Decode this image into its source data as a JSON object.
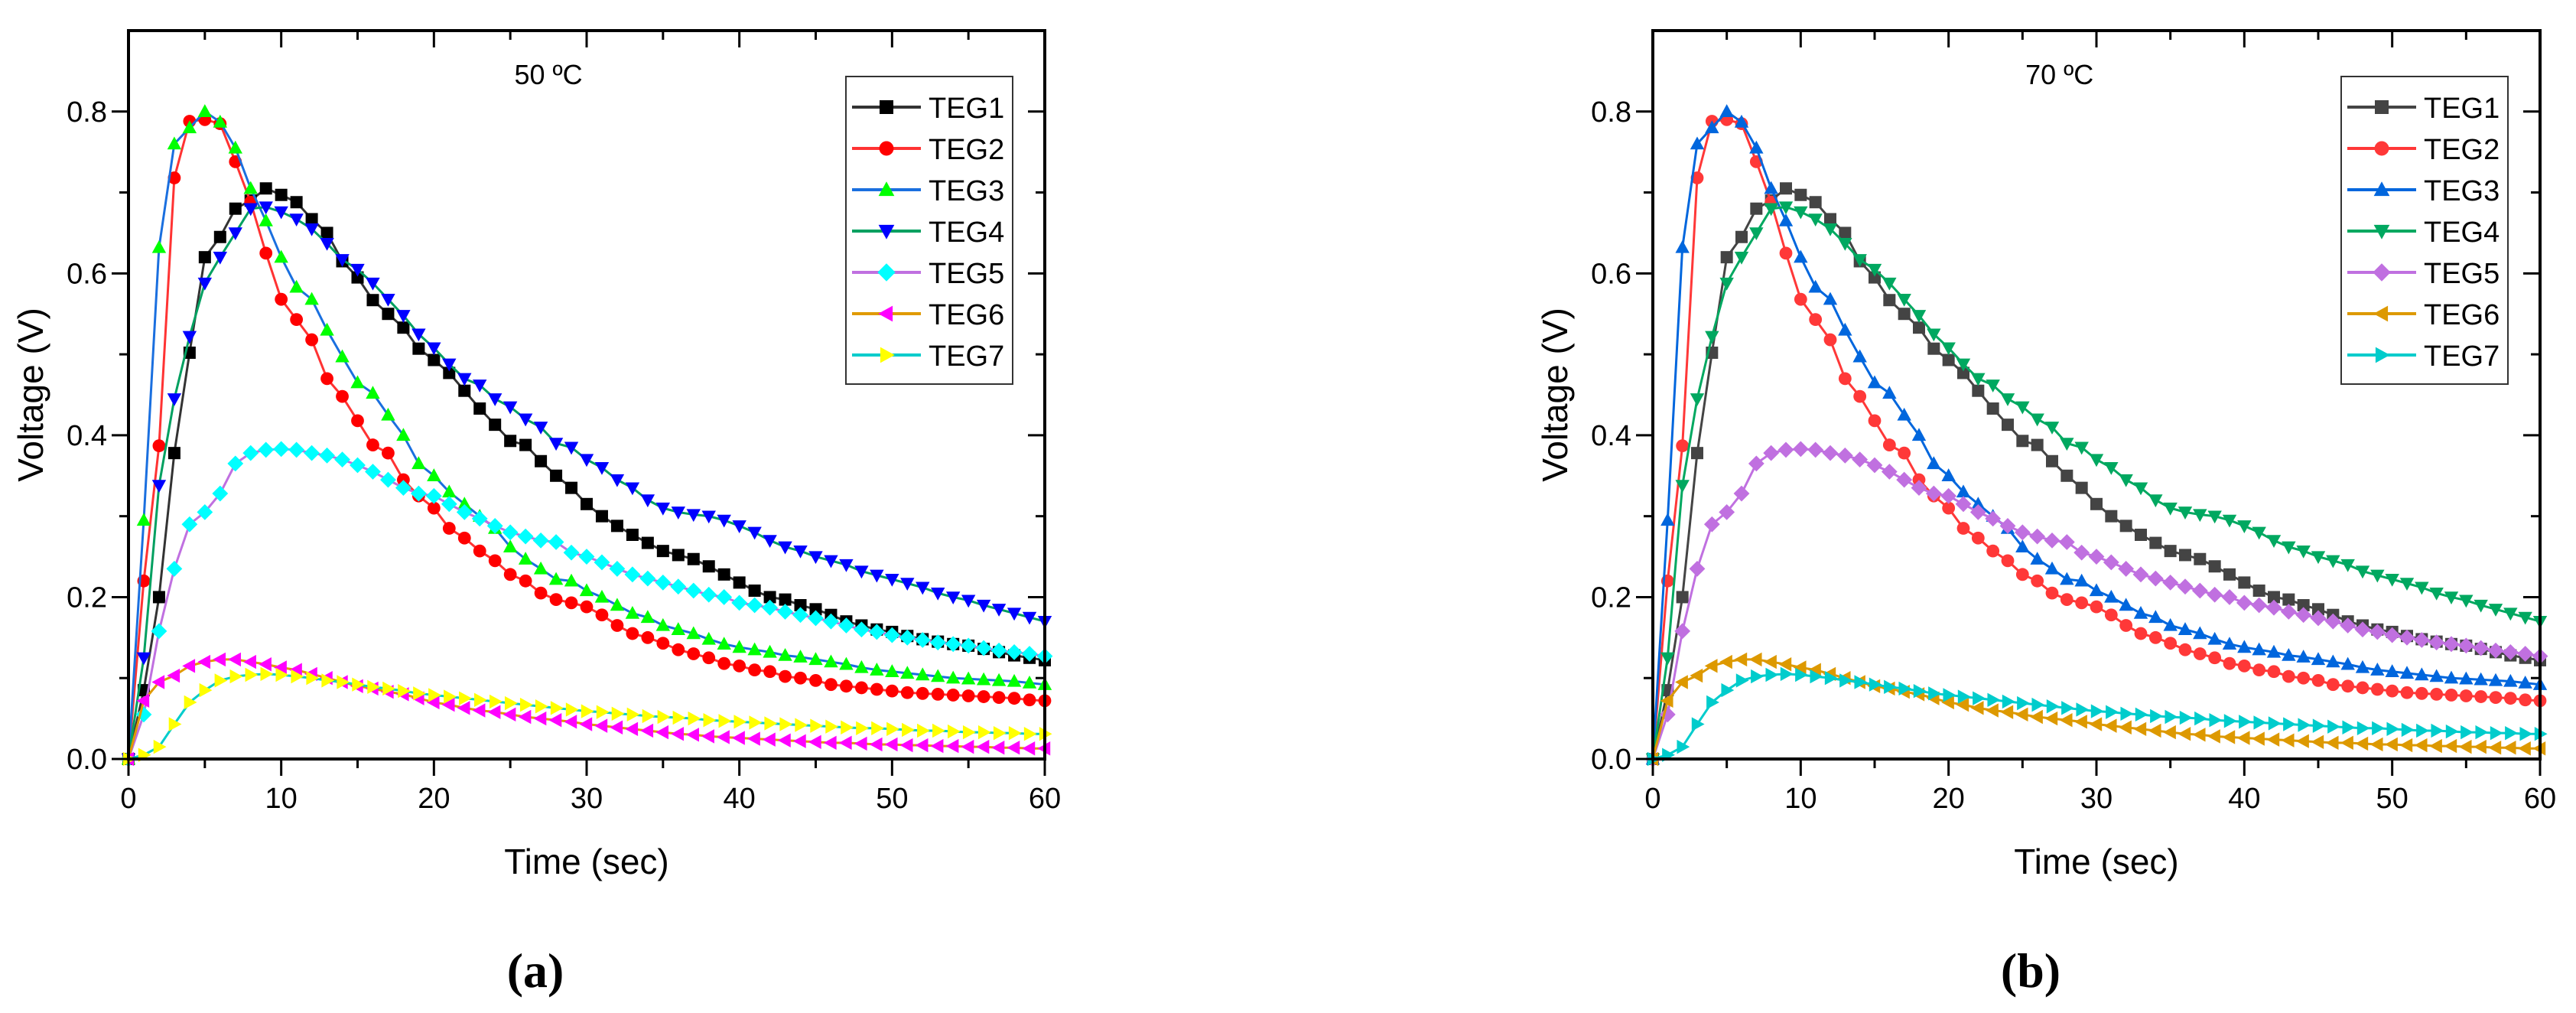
{
  "chart_data": [
    {
      "type": "line",
      "panel_label": "(a)",
      "annotation": "50 ºC",
      "xlabel": "Time (sec)",
      "ylabel": "Voltage (V)",
      "xlim": [
        0,
        60
      ],
      "ylim": [
        0,
        0.9
      ],
      "xticks": [
        0,
        10,
        20,
        30,
        40,
        50,
        60
      ],
      "yticks": [
        0.0,
        0.2,
        0.4,
        0.6,
        0.8
      ],
      "ytick_labels": [
        "0.0",
        "0.2",
        "0.4",
        "0.6",
        "0.8"
      ],
      "grid": false,
      "legend_position": "top-right",
      "series": [
        {
          "name": "TEG1",
          "line_color": "#333333",
          "marker_color": "#000000",
          "marker": "square"
        },
        {
          "name": "TEG2",
          "line_color": "#ff3333",
          "marker_color": "#ff0000",
          "marker": "circle"
        },
        {
          "name": "TEG3",
          "line_color": "#1a6fdf",
          "marker_color": "#00ff00",
          "marker": "triangle-up"
        },
        {
          "name": "TEG4",
          "line_color": "#00a060",
          "marker_color": "#0000ff",
          "marker": "triangle-down"
        },
        {
          "name": "TEG5",
          "line_color": "#c070e0",
          "marker_color": "#00ffff",
          "marker": "diamond"
        },
        {
          "name": "TEG6",
          "line_color": "#e09a00",
          "marker_color": "#ff00ff",
          "marker": "triangle-left"
        },
        {
          "name": "TEG7",
          "line_color": "#00cccc",
          "marker_color": "#ffff00",
          "marker": "triangle-right"
        }
      ]
    },
    {
      "type": "line",
      "panel_label": "(b)",
      "annotation": "70 ºC",
      "xlabel": "Time (sec)",
      "ylabel": "Voltage (V)",
      "xlim": [
        0,
        60
      ],
      "ylim": [
        0,
        0.9
      ],
      "xticks": [
        0,
        10,
        20,
        30,
        40,
        50,
        60
      ],
      "yticks": [
        0.0,
        0.2,
        0.4,
        0.6,
        0.8
      ],
      "ytick_labels": [
        "0.0",
        "0.2",
        "0.4",
        "0.6",
        "0.8"
      ],
      "grid": false,
      "legend_position": "top-right",
      "series": [
        {
          "name": "TEG1",
          "line_color": "#444444",
          "marker_color": "#444444",
          "marker": "square"
        },
        {
          "name": "TEG2",
          "line_color": "#ff3838",
          "marker_color": "#ff3838",
          "marker": "circle"
        },
        {
          "name": "TEG3",
          "line_color": "#0066dd",
          "marker_color": "#0066dd",
          "marker": "triangle-up"
        },
        {
          "name": "TEG4",
          "line_color": "#00a860",
          "marker_color": "#00a860",
          "marker": "triangle-down"
        },
        {
          "name": "TEG5",
          "line_color": "#c070e0",
          "marker_color": "#c070e0",
          "marker": "diamond"
        },
        {
          "name": "TEG6",
          "line_color": "#dd9900",
          "marker_color": "#dd9900",
          "marker": "triangle-left"
        },
        {
          "name": "TEG7",
          "line_color": "#00cccc",
          "marker_color": "#00cccc",
          "marker": "triangle-right"
        }
      ]
    }
  ],
  "x_values": "0 to 60 step 1 (shared by all series)",
  "values": {
    "TEG1": [
      0,
      0.085,
      0.2,
      0.378,
      0.502,
      0.62,
      0.645,
      0.68,
      0.69,
      0.705,
      0.697,
      0.688,
      0.667,
      0.65,
      0.615,
      0.595,
      0.567,
      0.55,
      0.533,
      0.507,
      0.493,
      0.477,
      0.455,
      0.433,
      0.413,
      0.393,
      0.388,
      0.368,
      0.35,
      0.335,
      0.315,
      0.3,
      0.288,
      0.277,
      0.267,
      0.257,
      0.252,
      0.247,
      0.238,
      0.228,
      0.218,
      0.208,
      0.2,
      0.197,
      0.19,
      0.185,
      0.178,
      0.17,
      0.165,
      0.16,
      0.157,
      0.152,
      0.148,
      0.145,
      0.142,
      0.14,
      0.136,
      0.132,
      0.128,
      0.125,
      0.122
    ],
    "TEG2": [
      0,
      0.22,
      0.387,
      0.718,
      0.788,
      0.79,
      0.785,
      0.738,
      0.688,
      0.625,
      0.568,
      0.543,
      0.518,
      0.47,
      0.448,
      0.418,
      0.388,
      0.378,
      0.345,
      0.325,
      0.31,
      0.285,
      0.273,
      0.257,
      0.245,
      0.228,
      0.22,
      0.205,
      0.197,
      0.193,
      0.188,
      0.178,
      0.165,
      0.155,
      0.15,
      0.143,
      0.135,
      0.13,
      0.125,
      0.118,
      0.115,
      0.11,
      0.108,
      0.102,
      0.1,
      0.097,
      0.092,
      0.09,
      0.088,
      0.086,
      0.084,
      0.082,
      0.081,
      0.08,
      0.079,
      0.078,
      0.077,
      0.076,
      0.075,
      0.073,
      0.072
    ],
    "TEG3": [
      0,
      0.295,
      0.632,
      0.76,
      0.78,
      0.8,
      0.787,
      0.755,
      0.705,
      0.665,
      0.62,
      0.583,
      0.568,
      0.53,
      0.497,
      0.465,
      0.452,
      0.425,
      0.4,
      0.365,
      0.35,
      0.33,
      0.315,
      0.3,
      0.285,
      0.262,
      0.247,
      0.235,
      0.222,
      0.22,
      0.208,
      0.2,
      0.19,
      0.18,
      0.175,
      0.165,
      0.16,
      0.155,
      0.148,
      0.142,
      0.138,
      0.135,
      0.132,
      0.128,
      0.126,
      0.123,
      0.12,
      0.117,
      0.113,
      0.11,
      0.108,
      0.106,
      0.104,
      0.102,
      0.1,
      0.099,
      0.098,
      0.097,
      0.096,
      0.094,
      0.092
    ],
    "TEG4": [
      0,
      0.125,
      0.338,
      0.445,
      0.522,
      0.588,
      0.62,
      0.65,
      0.68,
      0.682,
      0.676,
      0.667,
      0.655,
      0.637,
      0.617,
      0.605,
      0.588,
      0.568,
      0.548,
      0.525,
      0.508,
      0.488,
      0.47,
      0.462,
      0.445,
      0.435,
      0.42,
      0.41,
      0.39,
      0.385,
      0.37,
      0.36,
      0.345,
      0.335,
      0.32,
      0.31,
      0.305,
      0.302,
      0.3,
      0.295,
      0.288,
      0.28,
      0.27,
      0.262,
      0.257,
      0.25,
      0.245,
      0.24,
      0.232,
      0.227,
      0.222,
      0.217,
      0.212,
      0.205,
      0.2,
      0.196,
      0.19,
      0.185,
      0.18,
      0.175,
      0.17
    ],
    "TEG5": [
      0,
      0.055,
      0.158,
      0.235,
      0.29,
      0.305,
      0.328,
      0.365,
      0.378,
      0.382,
      0.383,
      0.382,
      0.378,
      0.375,
      0.37,
      0.363,
      0.355,
      0.345,
      0.335,
      0.328,
      0.325,
      0.315,
      0.305,
      0.297,
      0.288,
      0.28,
      0.275,
      0.27,
      0.268,
      0.255,
      0.25,
      0.243,
      0.235,
      0.228,
      0.223,
      0.218,
      0.213,
      0.208,
      0.203,
      0.2,
      0.193,
      0.19,
      0.187,
      0.182,
      0.178,
      0.174,
      0.17,
      0.165,
      0.16,
      0.157,
      0.153,
      0.15,
      0.147,
      0.144,
      0.142,
      0.14,
      0.137,
      0.134,
      0.132,
      0.13,
      0.127
    ],
    "TEG6": [
      0,
      0.072,
      0.095,
      0.103,
      0.115,
      0.12,
      0.123,
      0.123,
      0.12,
      0.117,
      0.113,
      0.11,
      0.105,
      0.1,
      0.095,
      0.09,
      0.087,
      0.083,
      0.08,
      0.075,
      0.07,
      0.067,
      0.063,
      0.06,
      0.058,
      0.055,
      0.052,
      0.05,
      0.048,
      0.046,
      0.043,
      0.041,
      0.039,
      0.037,
      0.035,
      0.033,
      0.031,
      0.03,
      0.028,
      0.027,
      0.026,
      0.025,
      0.024,
      0.023,
      0.022,
      0.021,
      0.02,
      0.02,
      0.019,
      0.018,
      0.018,
      0.017,
      0.017,
      0.016,
      0.016,
      0.015,
      0.015,
      0.014,
      0.014,
      0.013,
      0.013
    ],
    "TEG7": [
      0,
      0.005,
      0.015,
      0.043,
      0.07,
      0.085,
      0.097,
      0.102,
      0.104,
      0.105,
      0.104,
      0.102,
      0.1,
      0.097,
      0.095,
      0.092,
      0.089,
      0.087,
      0.084,
      0.081,
      0.079,
      0.077,
      0.075,
      0.073,
      0.071,
      0.069,
      0.067,
      0.065,
      0.063,
      0.061,
      0.059,
      0.058,
      0.056,
      0.055,
      0.053,
      0.052,
      0.051,
      0.05,
      0.048,
      0.047,
      0.046,
      0.045,
      0.044,
      0.043,
      0.042,
      0.041,
      0.04,
      0.039,
      0.038,
      0.038,
      0.037,
      0.036,
      0.035,
      0.035,
      0.034,
      0.033,
      0.033,
      0.032,
      0.032,
      0.031,
      0.031
    ]
  }
}
